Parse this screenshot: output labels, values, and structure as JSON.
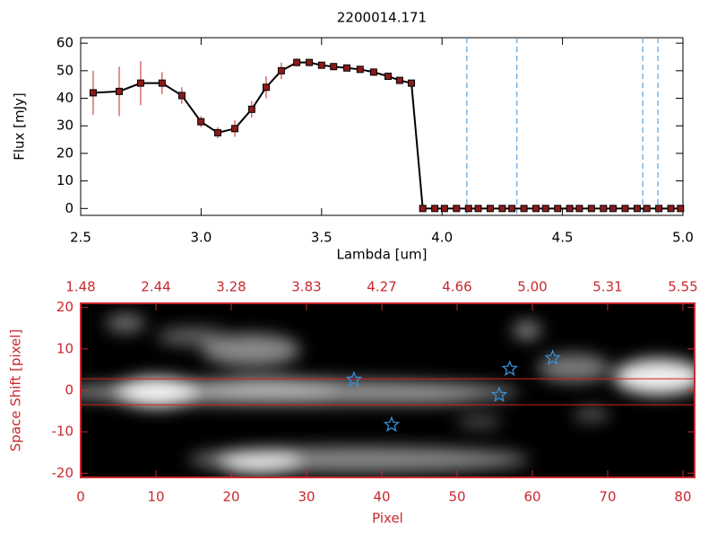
{
  "chart_data": [
    {
      "type": "line",
      "title": "2200014.171",
      "xlabel": "Lambda [um]",
      "ylabel": "Flux [mJy]",
      "xlim": [
        2.5,
        5.0
      ],
      "ylim": [
        -2.5,
        62
      ],
      "xticks": [
        2.5,
        {
          "value": 3,
          "label": "3.0"
        },
        3.5,
        {
          "value": 4,
          "label": "4.0"
        },
        4.5,
        {
          "value": 5,
          "label": "5.0"
        }
      ],
      "yticks": [
        0,
        10,
        20,
        30,
        40,
        50,
        60
      ],
      "vlines": [
        4.103,
        4.311,
        4.833,
        4.896
      ],
      "vline_color": "#3a8fd6",
      "series": [
        {
          "color": "#000000",
          "marker_color": "#8b1a1a",
          "error_color": "#d02020",
          "x": [
            2.552,
            2.66,
            2.749,
            2.838,
            2.92,
            2.999,
            3.069,
            3.14,
            3.21,
            3.27,
            3.333,
            3.397,
            3.449,
            3.5,
            3.55,
            3.605,
            3.66,
            3.716,
            3.776,
            3.824,
            3.873,
            3.92,
            3.97,
            4.01,
            4.06,
            4.11,
            4.15,
            4.2,
            4.25,
            4.29,
            4.34,
            4.39,
            4.43,
            4.48,
            4.53,
            4.57,
            4.62,
            4.67,
            4.71,
            4.76,
            4.81,
            4.85,
            4.9,
            4.95,
            4.99
          ],
          "values": [
            42,
            42.5,
            45.5,
            45.5,
            41,
            31.5,
            27.5,
            29,
            36,
            44,
            50,
            53,
            53,
            52,
            51.5,
            51,
            50.5,
            49.5,
            48,
            46.5,
            45.5,
            0,
            0,
            0,
            0,
            0,
            0,
            0,
            0,
            0,
            0,
            0,
            0,
            0,
            0,
            0,
            0,
            0,
            0,
            0,
            0,
            0,
            0,
            0,
            0
          ],
          "errors": [
            8,
            9,
            8,
            4,
            3,
            2,
            2,
            3,
            3,
            4,
            3,
            1.5,
            1,
            1,
            1,
            1,
            1,
            1,
            1,
            1,
            1,
            null,
            null,
            null,
            null,
            null,
            null,
            null,
            null,
            null,
            null,
            null,
            null,
            null,
            null,
            null,
            null,
            null,
            null,
            null,
            null,
            null,
            null,
            null,
            null
          ]
        }
      ]
    },
    {
      "type": "image",
      "xlabel": "Pixel",
      "ylabel": "Space Shift [pixel]",
      "axis_color": "#c8282e",
      "xlim": [
        0,
        81.55
      ],
      "ylim": [
        -21,
        21
      ],
      "xticks": [
        0,
        10,
        20,
        30,
        40,
        50,
        60,
        70,
        80
      ],
      "x2ticks": [
        {
          "value": 0,
          "label": "1.48"
        },
        {
          "value": 10,
          "label": "2.44"
        },
        {
          "value": 20,
          "label": "3.28"
        },
        {
          "value": 30,
          "label": "3.83"
        },
        {
          "value": 40,
          "label": "4.27"
        },
        {
          "value": 50,
          "label": "4.66"
        },
        {
          "value": 60,
          "label": "5.00"
        },
        {
          "value": 70,
          "label": "5.31"
        },
        {
          "value": 80,
          "label": "5.55"
        }
      ],
      "yticks": [
        -20,
        -10,
        0,
        10,
        20
      ],
      "hlines": [
        2.8,
        -3.5
      ],
      "hline_color": "#d02020",
      "stars": {
        "color": "#3a8fd6",
        "x": [
          36.3,
          41.3,
          55.6,
          57.0,
          62.7
        ],
        "y": [
          2.6,
          -8.3,
          -1.1,
          5.2,
          7.8
        ]
      }
    }
  ]
}
